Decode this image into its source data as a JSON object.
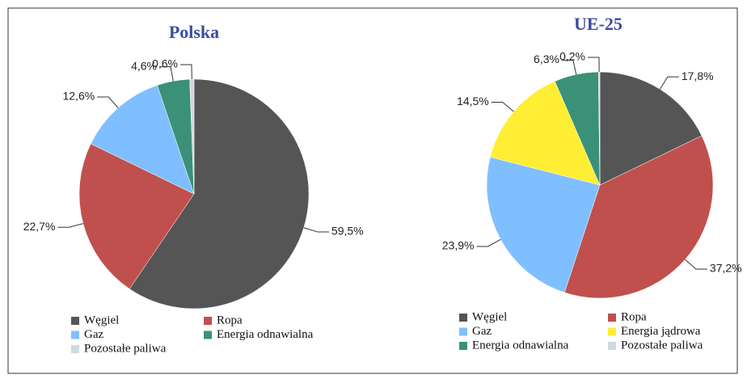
{
  "chart_data": [
    {
      "type": "pie",
      "title": "Polska",
      "categories": [
        "Węgiel",
        "Ropa",
        "Gaz",
        "Energia odnawialna",
        "Pozostałe paliwa"
      ],
      "values": [
        59.5,
        22.7,
        12.6,
        4.6,
        0.6
      ],
      "value_labels": [
        "59,5%",
        "22,7%",
        "12,6%",
        "4,6%",
        "0,6%"
      ],
      "colors": [
        "#555555",
        "#c0504d",
        "#80bfff",
        "#3a9178",
        "#d0d8e0"
      ]
    },
    {
      "type": "pie",
      "title": "UE-25",
      "categories": [
        "Węgiel",
        "Ropa",
        "Gaz",
        "Energia jądrowa",
        "Energia odnawialna",
        "Pozostałe paliwa"
      ],
      "values": [
        17.8,
        37.2,
        23.9,
        14.5,
        6.3,
        0.2
      ],
      "value_labels": [
        "17,8%",
        "37,2%",
        "23,9%",
        "14,5%",
        "6,3%",
        "0,2%"
      ],
      "colors": [
        "#555555",
        "#c0504d",
        "#80bfff",
        "#ffee33",
        "#3a9178",
        "#d0d8e0"
      ]
    }
  ]
}
